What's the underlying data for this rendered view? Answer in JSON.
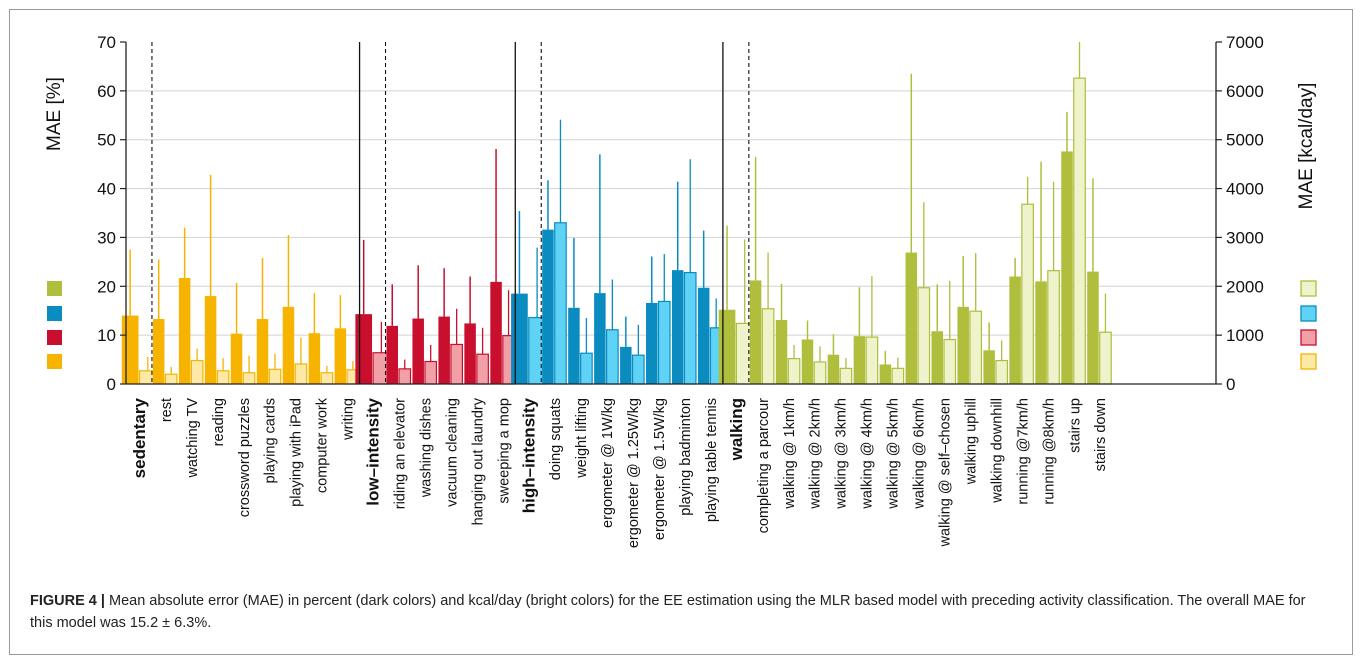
{
  "caption": {
    "label": "FIGURE 4 |",
    "text": "Mean absolute error (MAE) in percent (dark colors) and kcal/day (bright colors) for the EE estimation using the MLR based model with preceding activity classification. The overall MAE for this model was 15.2 ± 6.3%."
  },
  "chart_data": {
    "type": "bar",
    "ylabel_left": "MAE [%]",
    "ylabel_right": "MAE [kcal/day]",
    "ylim_left": [
      0,
      70
    ],
    "ylim_right": [
      0,
      7000
    ],
    "yticks_left": [
      0,
      10,
      20,
      30,
      40,
      50,
      60,
      70
    ],
    "yticks_right": [
      0,
      1000,
      2000,
      3000,
      4000,
      5000,
      6000,
      7000
    ],
    "grid": true,
    "colors": {
      "sedentary": {
        "dark": "#f6b400",
        "light": "#fde9a6"
      },
      "low": {
        "dark": "#c8102e",
        "light": "#f2a0a8"
      },
      "high": {
        "dark": "#0a8cc0",
        "light": "#5fd3f5"
      },
      "walking": {
        "dark": "#afbe3c",
        "light": "#eef3cb"
      }
    },
    "groups": [
      {
        "key": "sedentary",
        "label": "sedentary",
        "overall": {
          "pct": 14.0,
          "pct_err": 27.5,
          "kcal": 270,
          "kcal_err": 550
        },
        "activities": [
          {
            "label": "rest",
            "pct": 13.3,
            "pct_err": 25.5,
            "kcal": 200,
            "kcal_err": 350
          },
          {
            "label": "watching TV",
            "pct": 21.7,
            "pct_err": 32.0,
            "kcal": 480,
            "kcal_err": 720
          },
          {
            "label": "reading",
            "pct": 18.0,
            "pct_err": 42.8,
            "kcal": 270,
            "kcal_err": 530
          },
          {
            "label": "crossword puzzles",
            "pct": 10.3,
            "pct_err": 20.7,
            "kcal": 230,
            "kcal_err": 580
          },
          {
            "label": "playing cards",
            "pct": 13.3,
            "pct_err": 25.8,
            "kcal": 300,
            "kcal_err": 620
          },
          {
            "label": "playing with iPad",
            "pct": 15.8,
            "pct_err": 30.5,
            "kcal": 410,
            "kcal_err": 950
          },
          {
            "label": "computer work",
            "pct": 10.4,
            "pct_err": 18.6,
            "kcal": 230,
            "kcal_err": 370
          },
          {
            "label": "writing",
            "pct": 11.4,
            "pct_err": 18.2,
            "kcal": 290,
            "kcal_err": 470
          }
        ]
      },
      {
        "key": "low",
        "label": "low–intensity",
        "overall": {
          "pct": 14.3,
          "pct_err": 29.5,
          "kcal": 640,
          "kcal_err": 1270
        },
        "activities": [
          {
            "label": "riding an elevator",
            "pct": 11.9,
            "pct_err": 20.4,
            "kcal": 310,
            "kcal_err": 500
          },
          {
            "label": "washing dishes",
            "pct": 13.4,
            "pct_err": 24.3,
            "kcal": 460,
            "kcal_err": 800
          },
          {
            "label": "vacuum cleaning",
            "pct": 13.8,
            "pct_err": 23.7,
            "kcal": 810,
            "kcal_err": 1540
          },
          {
            "label": "hanging out laundry",
            "pct": 12.4,
            "pct_err": 22.0,
            "kcal": 610,
            "kcal_err": 1150
          },
          {
            "label": "sweeping a mop",
            "pct": 20.9,
            "pct_err": 48.1,
            "kcal": 990,
            "kcal_err": 1920
          }
        ]
      },
      {
        "key": "high",
        "label": "high–intensity",
        "overall": {
          "pct": 18.5,
          "pct_err": 35.4,
          "kcal": 1360,
          "kcal_err": 2790
        },
        "activities": [
          {
            "label": "doing squats",
            "pct": 31.6,
            "pct_err": 41.7,
            "kcal": 3300,
            "kcal_err": 5410
          },
          {
            "label": "weight lifting",
            "pct": 15.6,
            "pct_err": 29.9,
            "kcal": 630,
            "kcal_err": 1350
          },
          {
            "label": "ergometer @ 1W/kg",
            "pct": 18.6,
            "pct_err": 47.0,
            "kcal": 1110,
            "kcal_err": 2140
          },
          {
            "label": "ergometer @ 1.25W/kg",
            "pct": 7.6,
            "pct_err": 13.8,
            "kcal": 590,
            "kcal_err": 1210
          },
          {
            "label": "ergometer @ 1.5W/kg",
            "pct": 16.6,
            "pct_err": 26.1,
            "kcal": 1690,
            "kcal_err": 2660
          },
          {
            "label": "playing badminton",
            "pct": 23.3,
            "pct_err": 41.4,
            "kcal": 2280,
            "kcal_err": 4600
          },
          {
            "label": "playing table tennis",
            "pct": 19.7,
            "pct_err": 31.4,
            "kcal": 1150,
            "kcal_err": 1750
          }
        ]
      },
      {
        "key": "walking",
        "label": "walking",
        "overall": {
          "pct": 15.2,
          "pct_err": 32.4,
          "kcal": 1240,
          "kcal_err": 2960
        },
        "activities": [
          {
            "label": "completing a parcour",
            "pct": 21.2,
            "pct_err": 46.5,
            "kcal": 1540,
            "kcal_err": 2690
          },
          {
            "label": "walking @ 1km/h",
            "pct": 13.1,
            "pct_err": 20.5,
            "kcal": 520,
            "kcal_err": 800
          },
          {
            "label": "walking @ 2km/h",
            "pct": 9.1,
            "pct_err": 13.0,
            "kcal": 450,
            "kcal_err": 770
          },
          {
            "label": "walking @ 3km/h",
            "pct": 6.0,
            "pct_err": 10.2,
            "kcal": 320,
            "kcal_err": 530
          },
          {
            "label": "walking @ 4km/h",
            "pct": 9.8,
            "pct_err": 19.8,
            "kcal": 960,
            "kcal_err": 2210
          },
          {
            "label": "walking @ 5km/h",
            "pct": 4.0,
            "pct_err": 6.8,
            "kcal": 320,
            "kcal_err": 540
          },
          {
            "label": "walking @ 6km/h",
            "pct": 26.9,
            "pct_err": 63.5,
            "kcal": 1970,
            "kcal_err": 3720
          },
          {
            "label": "walking @ self–chosen",
            "pct": 10.8,
            "pct_err": 20.4,
            "kcal": 910,
            "kcal_err": 2110
          },
          {
            "label": "walking uphill",
            "pct": 15.8,
            "pct_err": 26.2,
            "kcal": 1490,
            "kcal_err": 2680
          },
          {
            "label": "walking downhill",
            "pct": 6.9,
            "pct_err": 12.6,
            "kcal": 480,
            "kcal_err": 890
          },
          {
            "label": "running @7km/h",
            "pct": 22.0,
            "pct_err": 25.8,
            "kcal": 3680,
            "kcal_err": 4240
          },
          {
            "label": "running @8km/h",
            "pct": 21.0,
            "pct_err": 45.5,
            "kcal": 2320,
            "kcal_err": 4140
          },
          {
            "label": "stairs up",
            "pct": 47.6,
            "pct_err": 55.7,
            "kcal": 6260,
            "kcal_err": 7000
          },
          {
            "label": "stairs down",
            "pct": 23.0,
            "pct_err": 42.1,
            "kcal": 1060,
            "kcal_err": 1850
          }
        ]
      }
    ],
    "legend": {
      "left": [
        "walking",
        "high",
        "low",
        "sedentary"
      ],
      "right": [
        "walking",
        "high",
        "low",
        "sedentary"
      ]
    }
  }
}
